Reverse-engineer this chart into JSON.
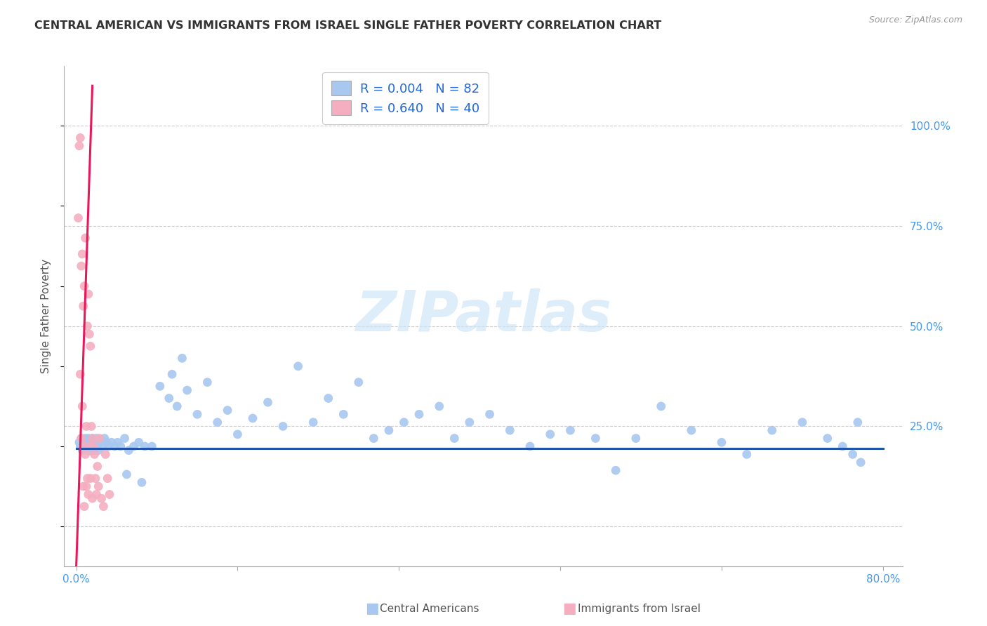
{
  "title": "CENTRAL AMERICAN VS IMMIGRANTS FROM ISRAEL SINGLE FATHER POVERTY CORRELATION CHART",
  "source": "Source: ZipAtlas.com",
  "ylabel": "Single Father Poverty",
  "watermark": "ZIPatlas",
  "blue_label": "Central Americans",
  "pink_label": "Immigrants from Israel",
  "legend_blue_r": "R = 0.004",
  "legend_blue_n": "N = 82",
  "legend_pink_r": "R = 0.640",
  "legend_pink_n": "N = 40",
  "blue_scatter_color": "#a8c8f0",
  "pink_scatter_color": "#f4aec0",
  "blue_line_color": "#2255aa",
  "pink_line_color": "#e8185a",
  "axis_tick_color": "#4499ee",
  "title_color": "#333333",
  "source_color": "#999999",
  "ylabel_color": "#555555",
  "grid_color": "#cccccc",
  "watermark_color": "#cce4f7",
  "legend_r_n_color": "#333333",
  "legend_val_color": "#2266dd",
  "xlim": [
    -0.012,
    0.82
  ],
  "ylim": [
    -0.1,
    1.15
  ],
  "xtick_positions": [
    0.0,
    0.16,
    0.32,
    0.48,
    0.64,
    0.8
  ],
  "xtick_labels": [
    "0.0%",
    "",
    "",
    "",
    "",
    "80.0%"
  ],
  "ytick_positions": [
    0.0,
    0.25,
    0.5,
    0.75,
    1.0
  ],
  "ytick_labels": [
    "",
    "25.0%",
    "50.0%",
    "75.0%",
    "100.0%"
  ],
  "blue_trend_x": [
    0.0,
    0.8
  ],
  "blue_trend_y": [
    0.195,
    0.195
  ],
  "pink_trend_x": [
    0.0,
    0.016
  ],
  "pink_trend_y": [
    -0.1,
    1.1
  ],
  "blue_x": [
    0.003,
    0.004,
    0.005,
    0.006,
    0.007,
    0.008,
    0.009,
    0.01,
    0.011,
    0.012,
    0.013,
    0.014,
    0.015,
    0.016,
    0.017,
    0.018,
    0.019,
    0.02,
    0.021,
    0.022,
    0.024,
    0.026,
    0.028,
    0.03,
    0.032,
    0.035,
    0.038,
    0.041,
    0.044,
    0.048,
    0.052,
    0.057,
    0.062,
    0.068,
    0.075,
    0.083,
    0.092,
    0.1,
    0.11,
    0.12,
    0.13,
    0.14,
    0.15,
    0.16,
    0.175,
    0.19,
    0.205,
    0.22,
    0.235,
    0.25,
    0.265,
    0.28,
    0.295,
    0.31,
    0.325,
    0.34,
    0.36,
    0.375,
    0.39,
    0.41,
    0.43,
    0.45,
    0.47,
    0.49,
    0.515,
    0.535,
    0.555,
    0.58,
    0.61,
    0.64,
    0.665,
    0.69,
    0.72,
    0.745,
    0.76,
    0.77,
    0.775,
    0.778,
    0.05,
    0.065,
    0.095,
    0.105
  ],
  "blue_y": [
    0.21,
    0.2,
    0.22,
    0.19,
    0.21,
    0.2,
    0.22,
    0.21,
    0.2,
    0.22,
    0.19,
    0.21,
    0.2,
    0.22,
    0.19,
    0.21,
    0.2,
    0.22,
    0.21,
    0.19,
    0.21,
    0.2,
    0.22,
    0.21,
    0.2,
    0.21,
    0.2,
    0.21,
    0.2,
    0.22,
    0.19,
    0.2,
    0.21,
    0.2,
    0.2,
    0.35,
    0.32,
    0.3,
    0.34,
    0.28,
    0.36,
    0.26,
    0.29,
    0.23,
    0.27,
    0.31,
    0.25,
    0.4,
    0.26,
    0.32,
    0.28,
    0.36,
    0.22,
    0.24,
    0.26,
    0.28,
    0.3,
    0.22,
    0.26,
    0.28,
    0.24,
    0.2,
    0.23,
    0.24,
    0.22,
    0.14,
    0.22,
    0.3,
    0.24,
    0.21,
    0.18,
    0.24,
    0.26,
    0.22,
    0.2,
    0.18,
    0.26,
    0.16,
    0.13,
    0.11,
    0.38,
    0.42
  ],
  "pink_x": [
    0.002,
    0.003,
    0.004,
    0.005,
    0.005,
    0.006,
    0.007,
    0.007,
    0.008,
    0.009,
    0.009,
    0.01,
    0.011,
    0.011,
    0.012,
    0.013,
    0.013,
    0.014,
    0.015,
    0.016,
    0.017,
    0.018,
    0.019,
    0.02,
    0.021,
    0.022,
    0.023,
    0.025,
    0.027,
    0.029,
    0.031,
    0.033,
    0.004,
    0.006,
    0.007,
    0.008,
    0.01,
    0.012,
    0.014,
    0.016
  ],
  "pink_y": [
    0.77,
    0.95,
    0.97,
    0.65,
    0.22,
    0.68,
    0.55,
    0.2,
    0.6,
    0.72,
    0.18,
    0.25,
    0.5,
    0.12,
    0.58,
    0.48,
    0.2,
    0.45,
    0.25,
    0.22,
    0.2,
    0.18,
    0.12,
    0.08,
    0.15,
    0.1,
    0.22,
    0.07,
    0.05,
    0.18,
    0.12,
    0.08,
    0.38,
    0.3,
    0.1,
    0.05,
    0.1,
    0.08,
    0.12,
    0.07
  ]
}
